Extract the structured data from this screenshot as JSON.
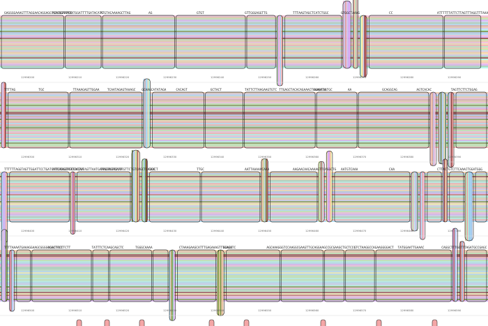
{
  "rows": [
    {
      "positions": [
        "12996200",
        "12996210",
        "12996220",
        "12996230",
        "12996240",
        "12996250",
        "12996260",
        "12996270",
        "12996280",
        "12996290"
      ],
      "sequences": [
        "GAGGGGAAAGTTTAGGAACAGGAGGTCAGGGAAAGG",
        "ACATGTTTTTATGGATTTTGATACATC",
        "ATGTACAAAAGCTTAG",
        "AG",
        "GTGT",
        "GTTGGGAGGTTG",
        "TTTAAGTAGCTCATCTGGC",
        "GTGGCTAAAG",
        "CC",
        "ATTTTTTATTCTTAGTTTAGGTTTAAAA"
      ]
    },
    {
      "positions": [
        "12996300",
        "12996310",
        "12996320",
        "12996330",
        "12996340",
        "12996350",
        "12996360",
        "12996370",
        "12996380",
        "12996390"
      ],
      "sequences": [
        "TTTTAG",
        "TGC",
        "TTAAAGAGTTGGAA",
        "TCAATAGAGTAAAGC",
        "GCAAGCATATAGA",
        "CACAGT",
        "GCTACT",
        "TATTCTTAAGAAGTGTC",
        "TTGAGCTACACAGAAACTCAAGATG",
        "AGAATGATGC",
        "AA",
        "GCAGGCAG",
        "AGTCACAC",
        "TAGTTCTTCTGGAG"
      ]
    },
    {
      "positions": [
        "12996400",
        "12996410",
        "12996420",
        "12996430",
        "12996440",
        "12996450",
        "12996460",
        "12996470",
        "12996480",
        "12996490"
      ],
      "sequences": [
        "TTTTTTAGGTAGTTGGATTCCTGATCATCAGGGTTTTCACAA",
        "ATTGTAGTAGCCACTGTAGTTAATGAAAGAAGAGAAA",
        "TTGCTGTTCCTTGTTCTGTCAGCTGAGGC",
        "CAACT",
        "TTGC",
        "AATTAAAAACAAA",
        "AAGAACAACAAAAGTTCAGGCTG",
        "AATGTCAAA",
        "CAA",
        "CTTACTGTCTTCAAACTGGATGGG"
      ]
    },
    {
      "positions": [
        "12996500",
        "12996510",
        "12996520",
        "12996530",
        "12996540",
        "12996550",
        "12996560",
        "12996570",
        "12996580",
        "12996590"
      ],
      "sequences": [
        "TTTTAAAATGAAAGGAAGCGGGGCCACTACC",
        "AGGCTTCTTCTT",
        "TATTTCTCAAGCAGCTC",
        "TGGGCAAAA",
        "CTAAAGAAGCATTTGAGAAAGTTTGAGCTC",
        "GCACA",
        "AGCAAAGGGTCCAAGGCGAAGTT",
        "GCAGGAAGCCGCGAAGCTGCTCCC",
        "GTCTAAGGCCAGAAGGGGACT",
        "TATGGAATTGAAAC",
        "CAGGCTTTGGTTTAGATGCCGAGC"
      ]
    }
  ]
}
